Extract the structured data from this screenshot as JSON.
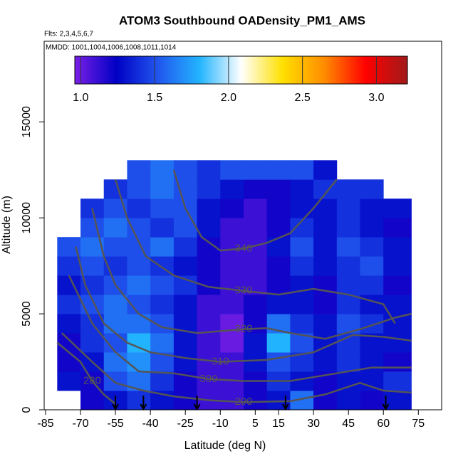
{
  "chart_data": {
    "type": "heatmap",
    "title": "ATOM3 Southbound OADensity_PM1_AMS",
    "subtitle": "Flts: 2,3,4,5,6,7",
    "annotation": "MMDD: 1001,1004,1006,1008,1011,1014",
    "xlabel": "Latitude (deg N)",
    "ylabel": "Altitude (m)",
    "xlim": [
      -85.6,
      85
    ],
    "ylim": [
      0,
      19200
    ],
    "xticks": [
      -85,
      -70,
      -55,
      -40,
      -25,
      -10,
      5,
      15,
      30,
      45,
      60,
      75
    ],
    "yticks": [
      0,
      5000,
      10000,
      15000
    ],
    "clim": [
      0.96,
      3.21
    ],
    "cticks": [
      1.0,
      1.5,
      2.0,
      2.5,
      3.0
    ],
    "cticks_labels": [
      "1.0",
      "1.5",
      "2.0",
      "2.5",
      "3.0"
    ],
    "colorscale": [
      "#7a1fe6",
      "#0000c4",
      "#2156ee",
      "#22b4ff",
      "#ffffff",
      "#ffe000",
      "#ff8c00",
      "#ff0000",
      "#a01a1a"
    ],
    "lat_edges": [
      -80,
      -70,
      -60,
      -50,
      -40,
      -30,
      -20,
      -10,
      0,
      10,
      20,
      30,
      40,
      50,
      60,
      72
    ],
    "alt_edges": [
      0,
      1000,
      2000,
      3000,
      4000,
      5000,
      6000,
      7000,
      8000,
      9000,
      10000,
      11000,
      12000,
      13000
    ],
    "values": [
      [
        null,
        1.2,
        1.3,
        1.4,
        1.3,
        1.2,
        1.1,
        1.1,
        1.2,
        1.3,
        1.6,
        1.2,
        1.3,
        1.2,
        1.3
      ],
      [
        1.3,
        1.2,
        1.5,
        1.6,
        1.4,
        1.2,
        1.1,
        1.1,
        1.2,
        1.4,
        1.3,
        1.2,
        1.3,
        1.3,
        1.4
      ],
      [
        1.2,
        1.3,
        1.6,
        1.7,
        1.5,
        1.3,
        1.1,
        1.1,
        1.3,
        1.5,
        1.4,
        1.3,
        1.4,
        1.3,
        1.2
      ],
      [
        1.2,
        1.4,
        1.5,
        1.8,
        1.6,
        1.3,
        1.1,
        1.0,
        1.3,
        1.8,
        1.5,
        1.3,
        1.4,
        1.3,
        1.3
      ],
      [
        1.3,
        1.4,
        1.6,
        1.6,
        1.5,
        1.3,
        1.1,
        1.0,
        1.2,
        1.6,
        1.4,
        1.3,
        1.5,
        1.4,
        1.3
      ],
      [
        1.4,
        1.5,
        1.6,
        1.5,
        1.4,
        1.3,
        1.1,
        1.1,
        1.2,
        1.3,
        1.3,
        1.2,
        1.4,
        1.3,
        1.3
      ],
      [
        1.3,
        1.4,
        1.5,
        1.6,
        1.5,
        1.4,
        1.2,
        1.1,
        1.1,
        1.2,
        1.3,
        1.2,
        1.4,
        1.4,
        1.2
      ],
      [
        1.4,
        1.5,
        1.4,
        1.5,
        1.4,
        1.3,
        1.2,
        1.1,
        1.1,
        1.2,
        1.4,
        1.3,
        1.4,
        1.5,
        1.3
      ],
      [
        1.5,
        1.6,
        1.5,
        1.5,
        1.6,
        1.4,
        1.2,
        1.1,
        1.1,
        1.3,
        1.5,
        1.3,
        1.5,
        1.4,
        1.3
      ],
      [
        null,
        1.5,
        1.6,
        1.5,
        1.4,
        1.5,
        1.3,
        1.1,
        1.1,
        1.2,
        1.4,
        1.3,
        1.4,
        1.3,
        1.2
      ],
      [
        null,
        1.4,
        1.5,
        1.4,
        1.5,
        1.5,
        1.3,
        1.2,
        1.1,
        1.2,
        1.3,
        1.3,
        1.4,
        1.3,
        1.3
      ],
      [
        null,
        null,
        1.4,
        1.5,
        1.6,
        1.5,
        1.4,
        1.3,
        1.2,
        1.2,
        1.3,
        1.4,
        1.4,
        1.4,
        null
      ],
      [
        null,
        null,
        null,
        1.5,
        1.6,
        1.5,
        1.4,
        1.5,
        1.5,
        1.5,
        1.5,
        1.3,
        null,
        null,
        null
      ]
    ],
    "contours": [
      {
        "level": 340,
        "x": [
          -30,
          -25,
          -18,
          -10,
          0,
          10,
          20,
          30,
          40
        ],
        "y": [
          12500,
          10500,
          9000,
          8300,
          8400,
          8700,
          9200,
          10500,
          12000
        ]
      },
      {
        "level": 330,
        "x": [
          -55,
          -50,
          -42,
          -30,
          -15,
          0,
          15,
          30,
          45,
          60,
          65
        ],
        "y": [
          12000,
          10000,
          8000,
          7000,
          6400,
          6200,
          6000,
          6300,
          6000,
          5500,
          4500
        ]
      },
      {
        "level": 320,
        "x": [
          -65,
          -60,
          -55,
          -45,
          -35,
          -20,
          0,
          10,
          20,
          35,
          50,
          65,
          72
        ],
        "y": [
          10500,
          8000,
          6500,
          5000,
          4300,
          4000,
          4200,
          4250,
          4000,
          3700,
          4200,
          4800,
          5000
        ]
      },
      {
        "level": 310,
        "x": [
          -72,
          -68,
          -60,
          -50,
          -40,
          -25,
          -10,
          10,
          30,
          47,
          60,
          72
        ],
        "y": [
          8500,
          6500,
          4500,
          3500,
          3000,
          2700,
          2500,
          2600,
          3000,
          3900,
          3800,
          3600
        ]
      },
      {
        "level": 300,
        "x": [
          -75,
          -65,
          -55,
          -45,
          -30,
          -15,
          0,
          20,
          40,
          55,
          72
        ],
        "y": [
          7000,
          4500,
          3000,
          2000,
          1900,
          1600,
          1500,
          1500,
          1900,
          2200,
          2200
        ]
      },
      {
        "level": 290,
        "x": [
          -78,
          -65,
          -55,
          -43,
          -30,
          -15,
          0,
          20,
          35,
          50,
          60,
          72
        ],
        "y": [
          4000,
          2500,
          1400,
          1000,
          700,
          500,
          400,
          450,
          800,
          1400,
          1000,
          900
        ]
      },
      {
        "level": 280,
        "x": [
          -80,
          -70,
          -65,
          -60,
          -55
        ],
        "y": [
          3500,
          2500,
          1500,
          800,
          300
        ]
      }
    ],
    "arrows_x": [
      -55,
      -43,
      -20,
      18,
      61
    ]
  }
}
